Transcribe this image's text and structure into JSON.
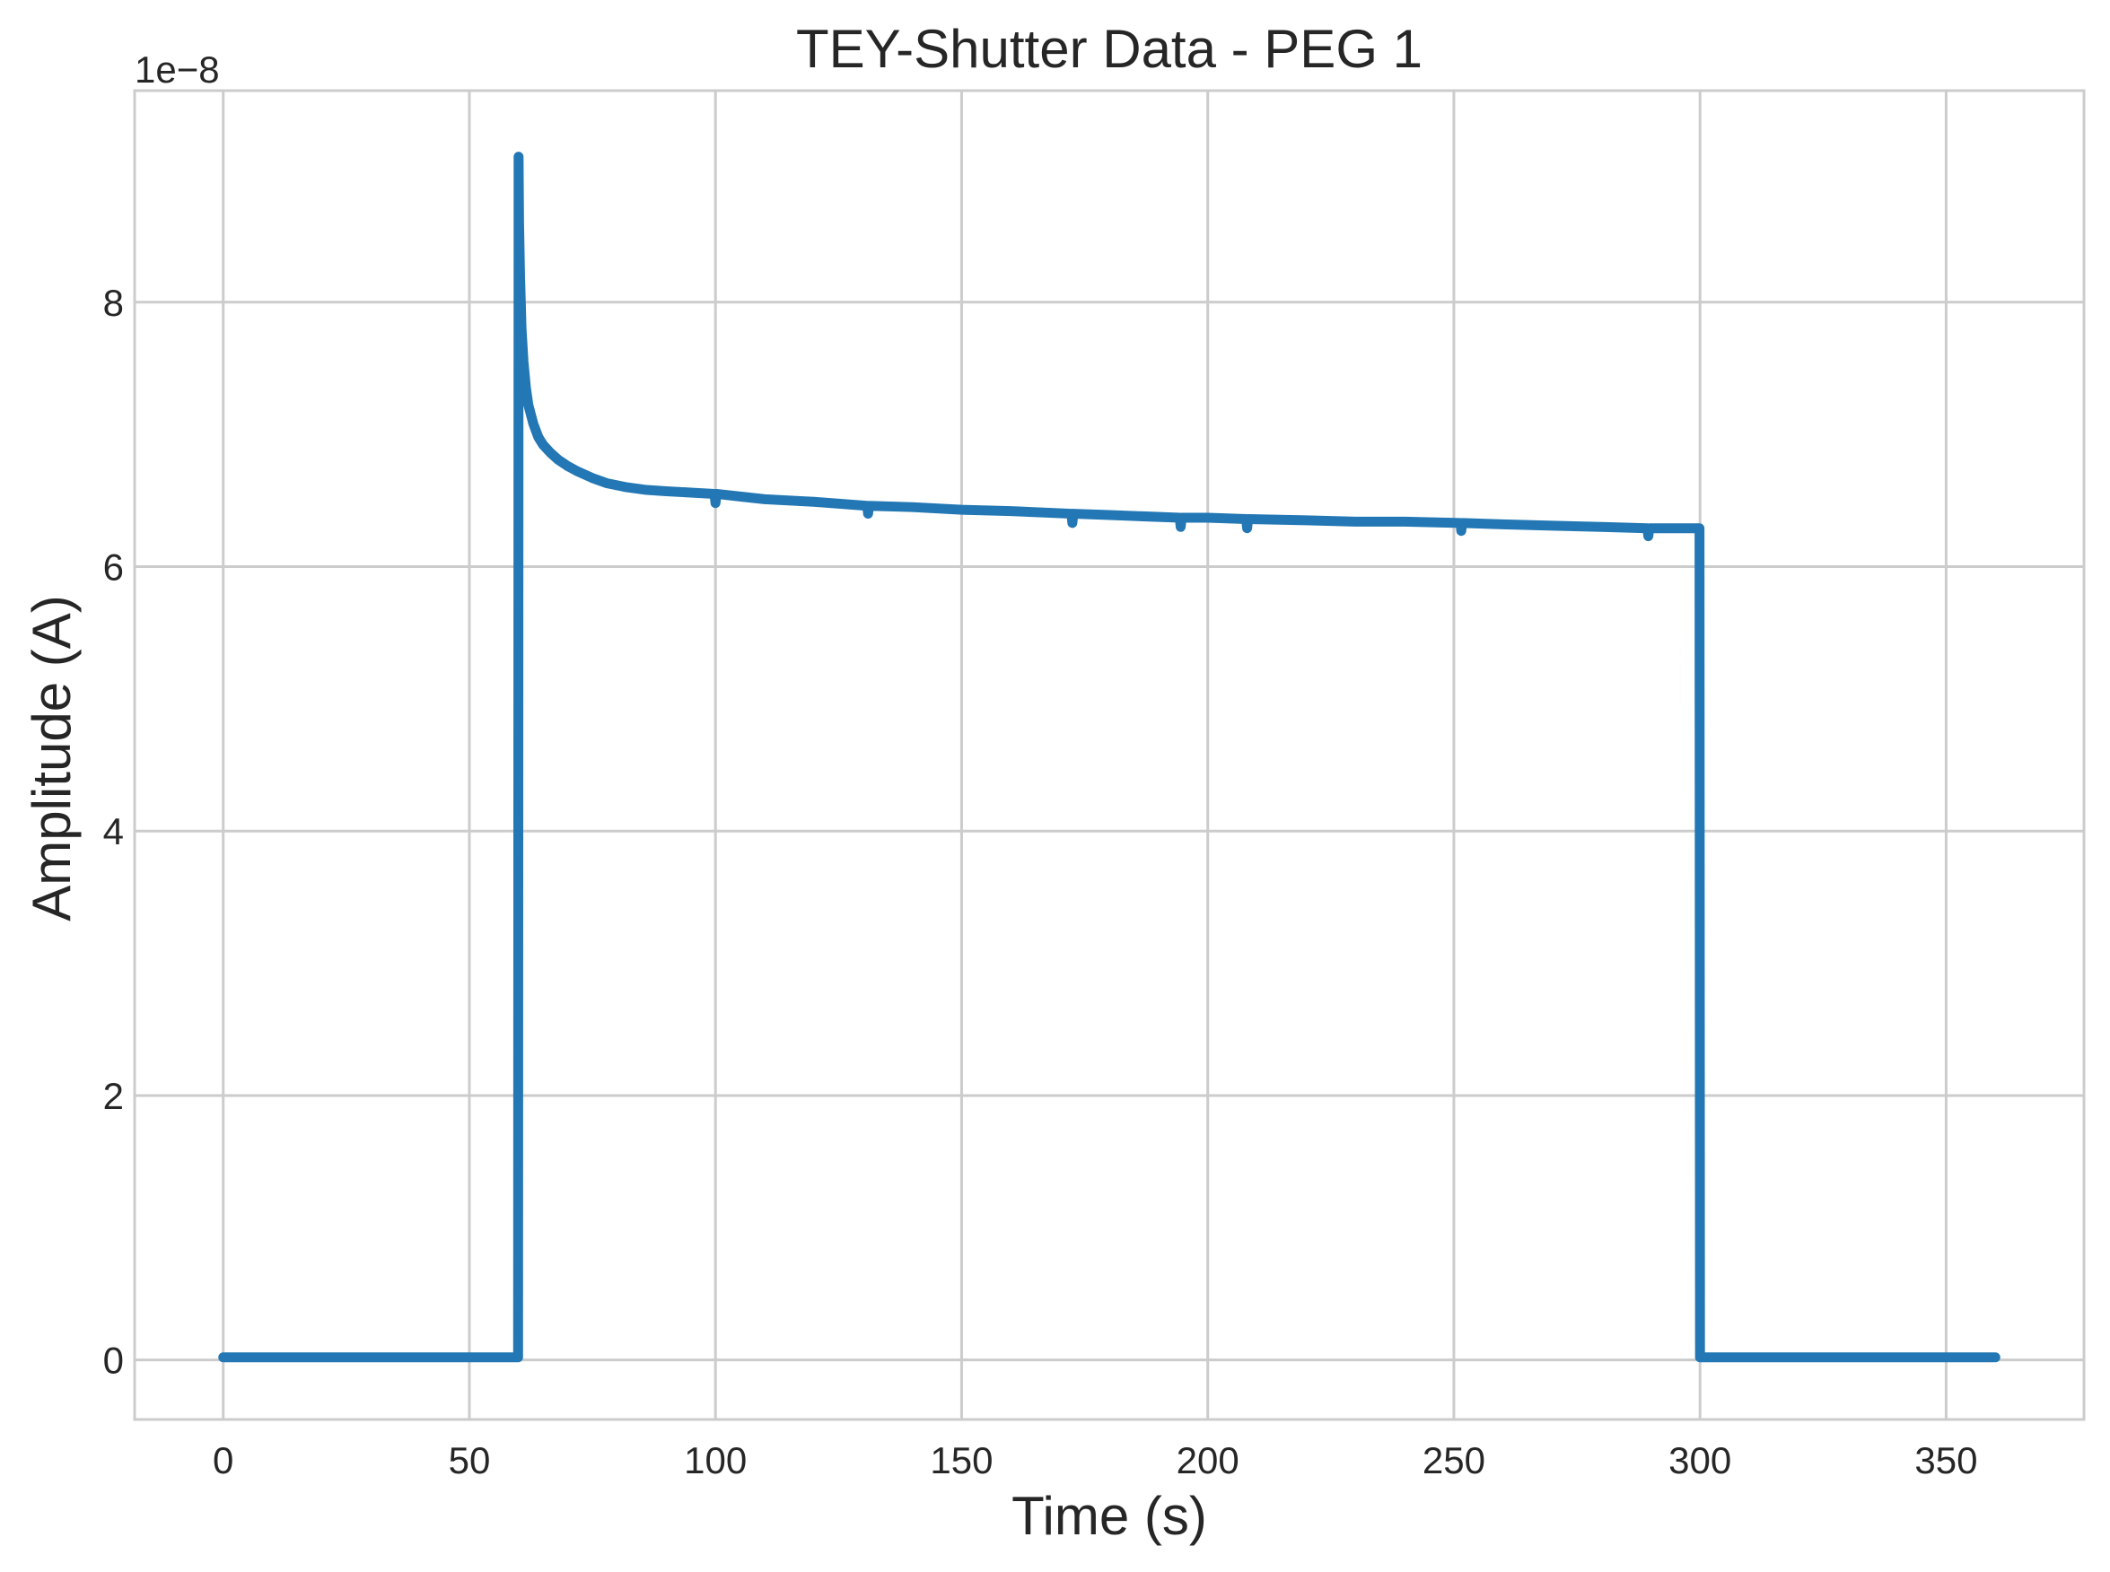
{
  "chart_data": {
    "type": "line",
    "title": "TEY-Shutter Data - PEG 1",
    "xlabel": "Time (s)",
    "ylabel": "Amplitude (A)",
    "y_offset_label": "1e−8",
    "y_scale_factor": 1e-08,
    "xlim": [
      -18,
      378
    ],
    "ylim": [
      -0.45,
      9.6
    ],
    "xticks": [
      0,
      50,
      100,
      150,
      200,
      250,
      300,
      350
    ],
    "yticks": [
      0,
      2,
      4,
      6,
      8
    ],
    "xtick_labels": [
      "0",
      "50",
      "100",
      "150",
      "200",
      "250",
      "300",
      "350"
    ],
    "ytick_labels": [
      "0",
      "2",
      "4",
      "6",
      "8"
    ],
    "grid": true,
    "line_color": "#2277b4",
    "grid_color": "#cccccc",
    "spine_color": "#cccccc",
    "series": [
      {
        "x": [
          0,
          20,
          40,
          59.9,
          60.0,
          60.1,
          60.3,
          60.6,
          61.0,
          61.5,
          62.0,
          63.0,
          64.0,
          65.0,
          66.5,
          68.0,
          70.0,
          72.0,
          75.0,
          78.0,
          82.0,
          86.0,
          90.0,
          95.0,
          99.8,
          100.0,
          100.2,
          105.0,
          110.0,
          120.0,
          130.8,
          131.0,
          131.2,
          140.0,
          150.0,
          160.0,
          172.3,
          172.5,
          172.7,
          180.0,
          194.3,
          194.5,
          194.7,
          200.0,
          207.8,
          208.0,
          208.2,
          220.0,
          230.0,
          240.0,
          251.3,
          251.5,
          251.7,
          260.0,
          270.0,
          280.0,
          289.3,
          289.5,
          289.7,
          295.0,
          299.9,
          300.0,
          310.0,
          330.0,
          360.0
        ],
        "y": [
          0.02,
          0.02,
          0.02,
          0.02,
          9.1,
          8.6,
          8.2,
          7.8,
          7.55,
          7.35,
          7.22,
          7.08,
          6.98,
          6.92,
          6.86,
          6.81,
          6.76,
          6.72,
          6.67,
          6.63,
          6.6,
          6.58,
          6.57,
          6.56,
          6.55,
          6.48,
          6.55,
          6.53,
          6.51,
          6.49,
          6.46,
          6.4,
          6.46,
          6.45,
          6.43,
          6.42,
          6.4,
          6.33,
          6.4,
          6.39,
          6.37,
          6.3,
          6.37,
          6.37,
          6.36,
          6.29,
          6.36,
          6.35,
          6.34,
          6.34,
          6.33,
          6.27,
          6.33,
          6.32,
          6.31,
          6.3,
          6.29,
          6.23,
          6.29,
          6.29,
          6.29,
          0.02,
          0.02,
          0.02,
          0.02
        ]
      }
    ]
  }
}
